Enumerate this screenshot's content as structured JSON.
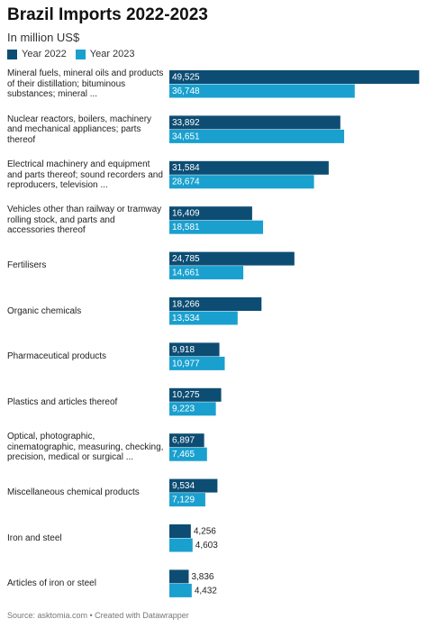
{
  "chart_data": {
    "type": "bar",
    "orientation": "horizontal",
    "title": "Brazil Imports 2022-2023",
    "subtitle": "In million US$",
    "source": "Source: asktomia.com • Created with Datawrapper",
    "categories": [
      "Mineral fuels, mineral oils and products of their distillation; bituminous substances; mineral ...",
      "Nuclear reactors, boilers, machinery and mechanical appliances; parts thereof",
      "Electrical machinery and equipment and parts thereof; sound recorders and reproducers, television ...",
      "Vehicles other than railway or tramway rolling stock, and parts and accessories thereof",
      "Fertilisers",
      "Organic chemicals",
      "Pharmaceutical products",
      "Plastics and articles thereof",
      "Optical, photographic, cinematographic, measuring, checking, precision, medical or surgical ...",
      "Miscellaneous chemical products",
      "Iron and steel",
      "Articles of iron or steel"
    ],
    "series": [
      {
        "name": "Year 2022",
        "color": "#0d4d73",
        "values": [
          49525,
          33892,
          31584,
          16409,
          24785,
          18266,
          9918,
          10275,
          6897,
          9534,
          4256,
          3836
        ],
        "value_labels": [
          "49,525",
          "33,892",
          "31,584",
          "16,409",
          "24,785",
          "18,266",
          "9,918",
          "10,275",
          "6,897",
          "9,534",
          "4,256",
          "3,836"
        ]
      },
      {
        "name": "Year 2023",
        "color": "#1aa0cf",
        "values": [
          36748,
          34651,
          28674,
          18581,
          14661,
          13534,
          10977,
          9223,
          7465,
          7129,
          4603,
          4432
        ],
        "value_labels": [
          "36,748",
          "34,651",
          "28,674",
          "18,581",
          "14,661",
          "13,534",
          "10,977",
          "9,223",
          "7,465",
          "7,129",
          "4,603",
          "4,432"
        ]
      }
    ],
    "xlim": [
      0,
      50000
    ],
    "legend": "top-left"
  }
}
